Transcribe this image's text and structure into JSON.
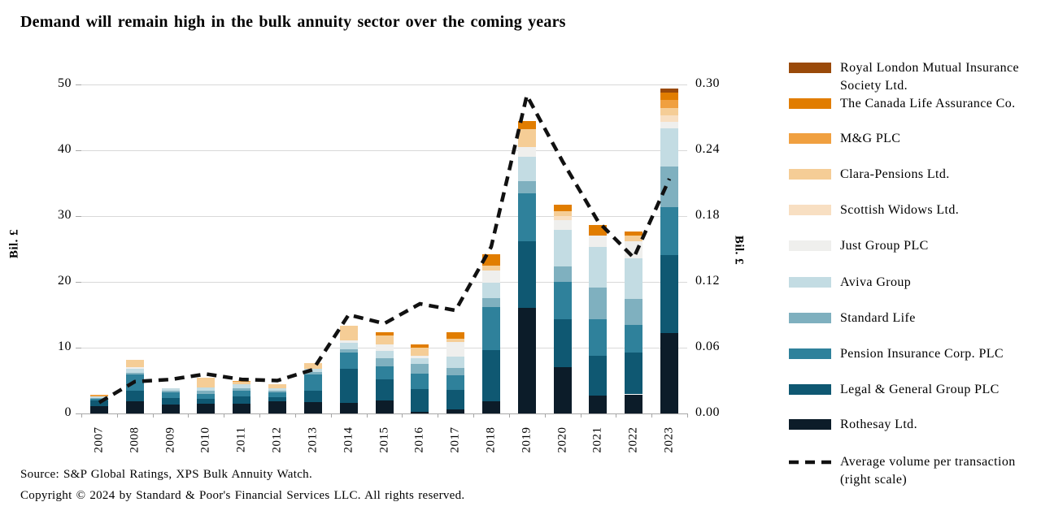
{
  "title": "Demand will remain high in the bulk annuity sector over the coming years",
  "left_axis": {
    "label": "Bil. £",
    "ticks": [
      "0",
      "10",
      "20",
      "30",
      "40",
      "50"
    ],
    "max": 50
  },
  "right_axis": {
    "label": "Bil. £",
    "ticks": [
      "0.00",
      "0.06",
      "0.12",
      "0.18",
      "0.24",
      "0.30"
    ],
    "max": 0.3
  },
  "source_line1": "Source: S&P Global Ratings, XPS Bulk Annuity Watch.",
  "source_line2": "Copyright © 2024 by Standard & Poor's Financial Services LLC. All rights reserved.",
  "chart_data": {
    "type": "bar",
    "subtype": "stacked-bars-with-line-right-scale",
    "categories": [
      "2007",
      "2008",
      "2009",
      "2010",
      "2011",
      "2012",
      "2013",
      "2014",
      "2015",
      "2016",
      "2017",
      "2018",
      "2019",
      "2020",
      "2021",
      "2022",
      "2023"
    ],
    "ylabel_left": "Bil. £",
    "ylabel_right": "Bil. £",
    "ylim_left": [
      0,
      50
    ],
    "ylim_right": [
      0,
      0.3
    ],
    "grid": true,
    "legend_position": "right",
    "series": [
      {
        "name": "Rothesay Ltd.",
        "color": "#0c1c29",
        "values": [
          1.1,
          1.9,
          1.4,
          1.5,
          1.5,
          1.8,
          1.7,
          1.6,
          2.0,
          0.2,
          0.6,
          1.8,
          16.0,
          7.0,
          2.7,
          2.9,
          12.2
        ]
      },
      {
        "name": "Legal & General Group PLC",
        "color": "#0f5872",
        "values": [
          0.9,
          1.6,
          1.0,
          0.7,
          1.1,
          0.7,
          1.8,
          5.2,
          3.2,
          3.5,
          3.0,
          7.8,
          10.2,
          7.3,
          6.1,
          6.4,
          11.9
        ]
      },
      {
        "name": "Pension Insurance Corp. PLC",
        "color": "#2f819b",
        "values": [
          0.3,
          2.4,
          0.8,
          0.8,
          0.8,
          0.7,
          2.4,
          2.4,
          2.0,
          2.4,
          2.2,
          6.6,
          7.3,
          5.7,
          5.5,
          4.2,
          7.2
        ]
      },
      {
        "name": "Standard Life",
        "color": "#7fb0bf",
        "values": [
          0.1,
          0.3,
          0.3,
          0.4,
          0.4,
          0.3,
          0.4,
          0.5,
          1.2,
          1.4,
          1.1,
          1.3,
          1.8,
          2.4,
          4.8,
          3.9,
          6.2
        ]
      },
      {
        "name": "Aviva Group",
        "color": "#c3dce3",
        "values": [
          0.15,
          0.6,
          0.3,
          0.5,
          0.7,
          0.3,
          0.5,
          1.0,
          1.1,
          0.9,
          1.8,
          2.4,
          3.7,
          5.5,
          6.2,
          6.2,
          5.8
        ]
      },
      {
        "name": "Just Group PLC",
        "color": "#efefed",
        "values": [
          0,
          0.2,
          0,
          0,
          0,
          0,
          0,
          0.4,
          1.0,
          0.4,
          2.2,
          1.8,
          1.5,
          1.5,
          1.7,
          2.6,
          1.0
        ]
      },
      {
        "name": "Scottish Widows Ltd.",
        "color": "#f8dfc2",
        "values": [
          0,
          0,
          0,
          0,
          0,
          0,
          0,
          0,
          0,
          0,
          0,
          0,
          0,
          0.6,
          0,
          0,
          1.0
        ]
      },
      {
        "name": "Clara-Pensions Ltd.",
        "color": "#f5cd96",
        "values": [
          0,
          1.1,
          0,
          1.5,
          0.3,
          0.6,
          0.8,
          2.2,
          1.3,
          1.2,
          0.5,
          0.8,
          2.7,
          0.7,
          0,
          0.8,
          1.1
        ]
      },
      {
        "name": "M&G PLC",
        "color": "#f0a040",
        "values": [
          0.25,
          0,
          0,
          0,
          0.2,
          0,
          0,
          0,
          0,
          0,
          0,
          0,
          0,
          0,
          0,
          0,
          1.2
        ]
      },
      {
        "name": "The Canada Life Assurance Co.",
        "color": "#e17d00",
        "values": [
          0,
          0,
          0,
          0,
          0,
          0,
          0,
          0,
          0.5,
          0.5,
          0.9,
          1.7,
          1.2,
          1.0,
          1.6,
          0.7,
          1.2
        ]
      },
      {
        "name": "Royal London Mutual Insurance Society Ltd.",
        "color": "#9a4a0a",
        "values": [
          0,
          0,
          0,
          0,
          0,
          0,
          0,
          0,
          0,
          0,
          0,
          0,
          0,
          0,
          0,
          0,
          0.6
        ]
      }
    ],
    "line": {
      "name": "Average volume per transaction (right scale)",
      "color": "#111111",
      "style": "dashed",
      "scale": "right",
      "values": [
        0.01,
        0.029,
        0.031,
        0.036,
        0.031,
        0.03,
        0.04,
        0.09,
        0.082,
        0.1,
        0.094,
        0.152,
        0.29,
        0.23,
        0.175,
        0.142,
        0.214
      ]
    },
    "legend_order_top_to_bottom": [
      "Royal London Mutual Insurance Society Ltd.",
      "The Canada Life Assurance Co.",
      "M&G PLC",
      "Clara-Pensions Ltd.",
      "Scottish Widows Ltd.",
      "Just Group PLC",
      "Aviva Group",
      "Standard Life",
      "Pension Insurance Corp. PLC",
      "Legal & General Group PLC",
      "Rothesay Ltd.",
      "Average volume per transaction (right scale)"
    ]
  }
}
